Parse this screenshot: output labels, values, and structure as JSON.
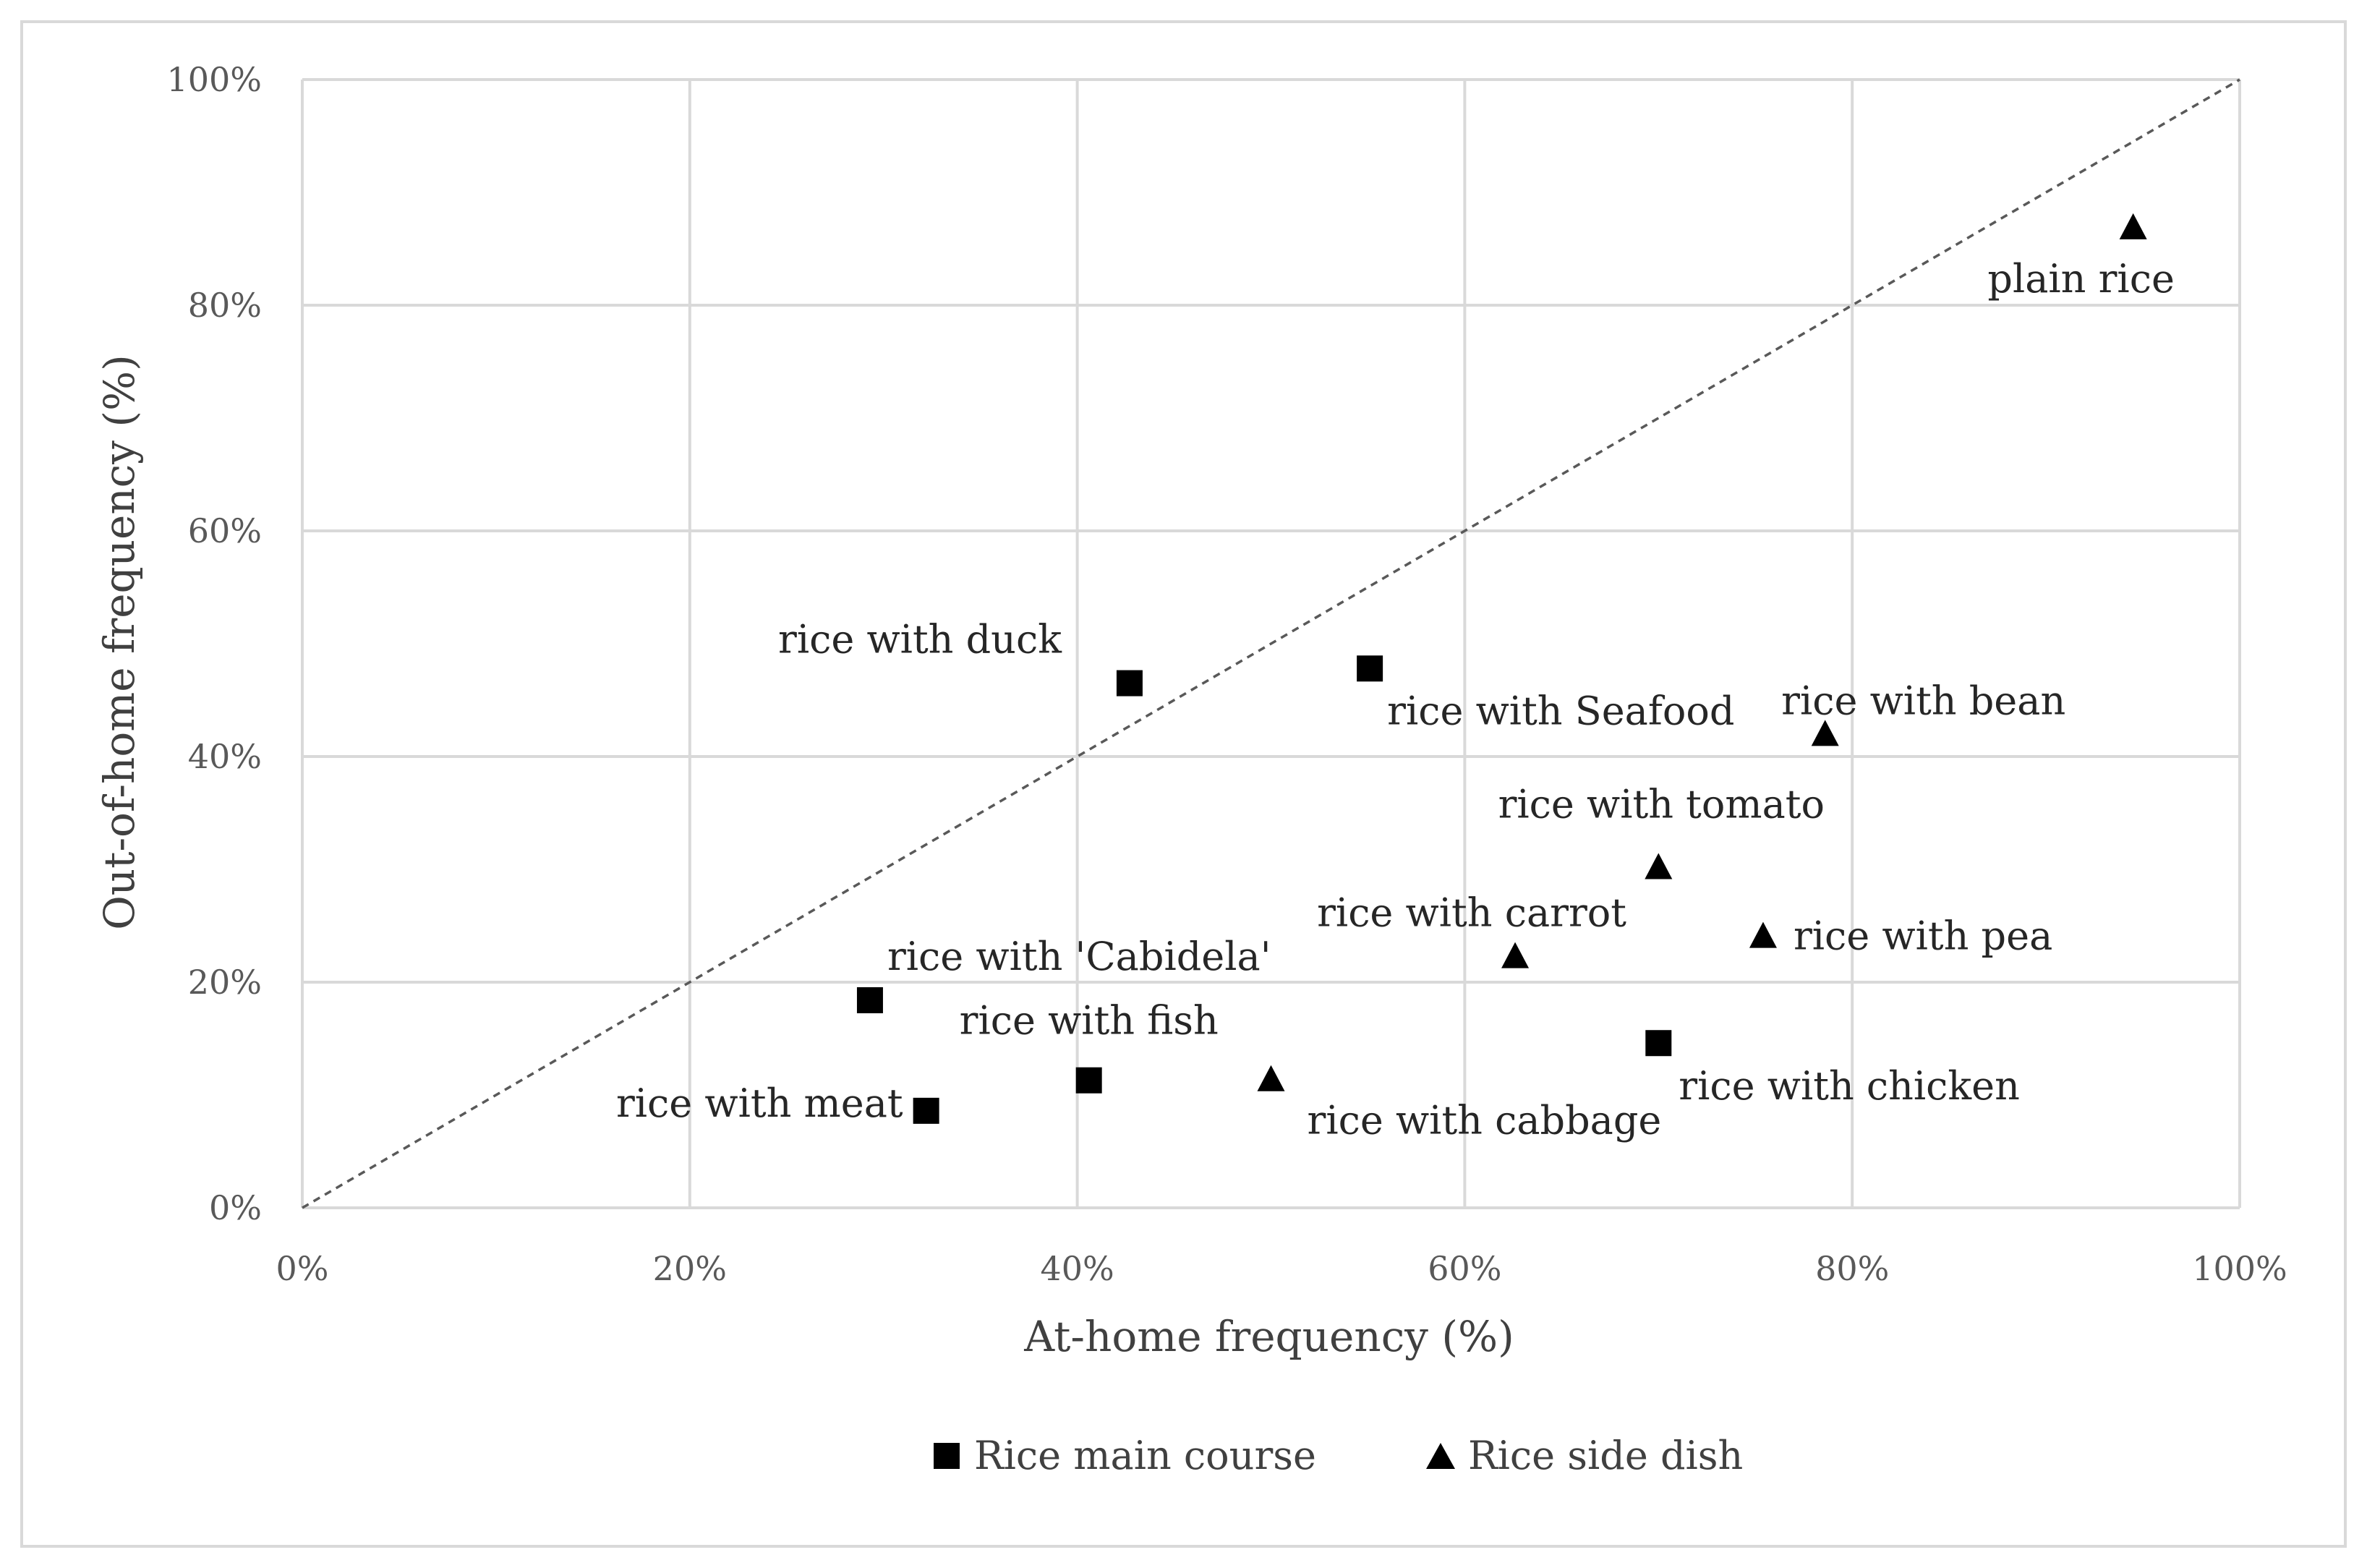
{
  "chart_data": {
    "type": "scatter",
    "title": "",
    "xlabel": "At-home frequency (%)",
    "ylabel": "Out-of-home frequency (%)",
    "xlim": [
      0,
      100
    ],
    "ylim": [
      0,
      100
    ],
    "x_ticks": [
      "0%",
      "20%",
      "40%",
      "60%",
      "80%",
      "100%"
    ],
    "y_ticks": [
      "0%",
      "20%",
      "40%",
      "60%",
      "80%",
      "100%"
    ],
    "grid": true,
    "reference_line": {
      "from": [
        0,
        0
      ],
      "to": [
        100,
        100
      ],
      "style": "dashed"
    },
    "legend_position": "bottom",
    "series": [
      {
        "name": "Rice main course",
        "marker": "square",
        "color": "#000000",
        "points": [
          {
            "label": "rice with duck",
            "x": 42.7,
            "y": 46.5
          },
          {
            "label": "rice with Seafood",
            "x": 55.1,
            "y": 47.8
          },
          {
            "label": "rice with 'Cabidela'",
            "x": 29.3,
            "y": 18.4
          },
          {
            "label": "rice with meat",
            "x": 32.2,
            "y": 8.6
          },
          {
            "label": "rice with fish",
            "x": 40.6,
            "y": 11.3
          },
          {
            "label": "rice with chicken",
            "x": 70.0,
            "y": 14.6
          }
        ]
      },
      {
        "name": "Rice side dish",
        "marker": "triangle",
        "color": "#000000",
        "points": [
          {
            "label": "plain rice",
            "x": 94.5,
            "y": 86.8
          },
          {
            "label": "rice with bean",
            "x": 78.6,
            "y": 41.9
          },
          {
            "label": "rice with tomato",
            "x": 70.0,
            "y": 30.1
          },
          {
            "label": "rice with carrot",
            "x": 62.6,
            "y": 22.2
          },
          {
            "label": "rice with pea",
            "x": 75.4,
            "y": 24.0
          },
          {
            "label": "rice with cabbage",
            "x": 50.0,
            "y": 11.3
          }
        ]
      }
    ]
  }
}
